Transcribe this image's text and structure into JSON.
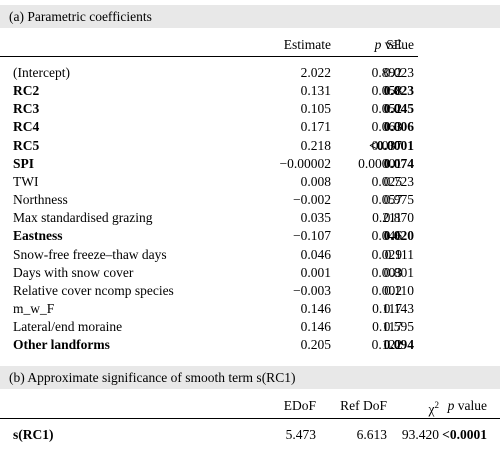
{
  "section_a": {
    "title": "(a) Parametric coefficients",
    "headers": {
      "estimate": "Estimate",
      "se": "SE",
      "p_italic": "p",
      "p_rest": " value"
    },
    "rows": [
      {
        "term": "(Intercept)",
        "estimate": "2.022",
        "se": "0.892",
        "p": "0.023",
        "bold": false
      },
      {
        "term": "RC2",
        "estimate": "0.131",
        "se": "0.058",
        "p": "0.023",
        "bold": true
      },
      {
        "term": "RC3",
        "estimate": "0.105",
        "se": "0.052",
        "p": "0.045",
        "bold": true
      },
      {
        "term": "RC4",
        "estimate": "0.171",
        "se": "0.063",
        "p": "0.006",
        "bold": true
      },
      {
        "term": "RC5",
        "estimate": "0.218",
        "se": "0.037",
        "p": "<0.0001",
        "bold": true
      },
      {
        "term": "SPI",
        "estimate": "−0.00002",
        "se": "0.00001",
        "p": "0.074",
        "bold": true
      },
      {
        "term": "TWI",
        "estimate": "0.008",
        "se": "0.025",
        "p": "0.723",
        "bold": false
      },
      {
        "term": "Northness",
        "estimate": "−0.002",
        "se": "0.057",
        "p": "0.975",
        "bold": false
      },
      {
        "term": "Max standardised grazing",
        "estimate": "0.035",
        "se": "0.211",
        "p": "0.870",
        "bold": false
      },
      {
        "term": "Eastness",
        "estimate": "−0.107",
        "se": "0.046",
        "p": "0.020",
        "bold": true
      },
      {
        "term": "Snow-free freeze–thaw days",
        "estimate": "0.046",
        "se": "0.029",
        "p": "0.111",
        "bold": false
      },
      {
        "term": "Days with snow cover",
        "estimate": "0.001",
        "se": "0.003",
        "p": "0.801",
        "bold": false
      },
      {
        "term": "Relative cover ncomp species",
        "estimate": "−0.003",
        "se": "0.002",
        "p": "0.110",
        "bold": false
      },
      {
        "term": "m_w_F",
        "estimate": "0.146",
        "se": "0.117",
        "p": "0.143",
        "bold": false
      },
      {
        "term": "Lateral/end moraine",
        "estimate": "0.146",
        "se": "0.117",
        "p": "0.595",
        "bold": false
      },
      {
        "term": "Other landforms",
        "estimate": "0.205",
        "se": "0.122",
        "p": "0.094",
        "bold": true
      }
    ]
  },
  "section_b": {
    "title": "(b) Approximate significance of smooth term s(RC1)",
    "headers": {
      "edof": "EDoF",
      "refdof": "Ref DoF",
      "chi_base": "χ",
      "chi_sup": "2",
      "p_italic": "p",
      "p_rest": " value"
    },
    "rows": [
      {
        "term": "s(RC1)",
        "edof": "5.473",
        "refdof": "6.613",
        "chi2": "93.420",
        "p": "<0.0001",
        "bold": true
      }
    ]
  }
}
